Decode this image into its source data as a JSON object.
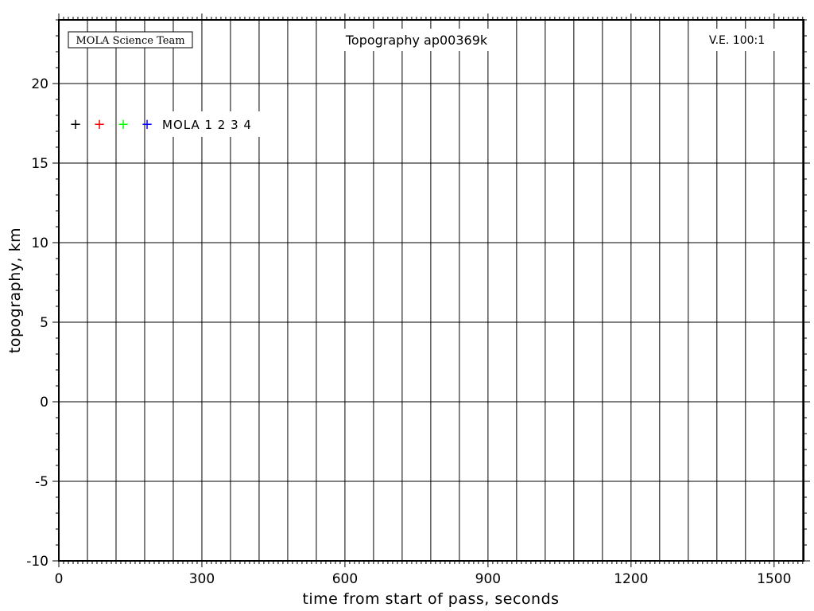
{
  "chart_data": {
    "type": "scatter",
    "title": "Topography ap00369k",
    "credit": "MOLA Science Team",
    "vertical_exaggeration": "V.E. 100:1",
    "xlabel": "time from start of pass, seconds",
    "ylabel": "topography, km",
    "xlim": [
      0,
      1562
    ],
    "ylim": [
      -10,
      24
    ],
    "x_ticks": [
      0,
      300,
      600,
      900,
      1200,
      1500
    ],
    "x_tick_labels": [
      "0",
      "300",
      "600",
      "900",
      "1200",
      "1500"
    ],
    "y_ticks": [
      -10,
      -5,
      0,
      5,
      10,
      15,
      20
    ],
    "y_tick_labels": [
      "-10",
      "-5",
      "0",
      "5",
      "10",
      "15",
      "20"
    ],
    "x_grid_step": 60,
    "x_minor_step": 10,
    "y_minor_step": 1,
    "grid": true,
    "legend": {
      "placement": "top-left",
      "markers": [
        {
          "symbol": "+",
          "color": "#000000"
        },
        {
          "symbol": "+",
          "color": "#ff0000"
        },
        {
          "symbol": "+",
          "color": "#00ff00"
        },
        {
          "symbol": "+",
          "color": "#0000ff"
        }
      ],
      "text": "MOLA 1 2 3 4"
    },
    "series": []
  }
}
